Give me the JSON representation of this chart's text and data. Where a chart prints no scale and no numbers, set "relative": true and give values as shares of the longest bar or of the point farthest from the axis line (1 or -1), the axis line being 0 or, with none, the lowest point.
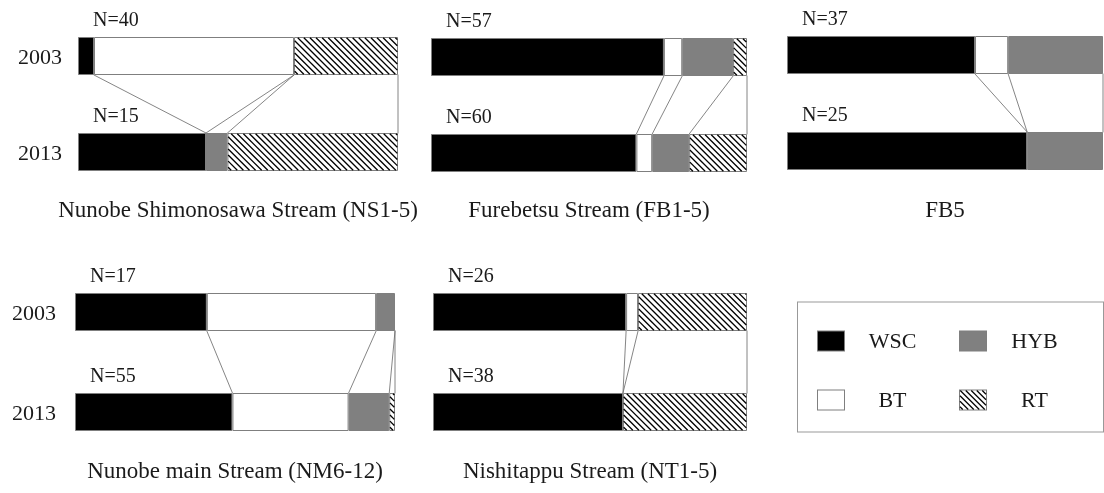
{
  "chart_data": [
    {
      "type": "bar",
      "orientation": "horizontal",
      "stacked": true,
      "relative": true,
      "title": "Nunobe Shimonosawa Stream (NS1-5)",
      "categories": [
        "2003",
        "2013"
      ],
      "series": [
        {
          "color": "#000000",
          "values": [
            0.05,
            0.4
          ]
        },
        {
          "color": "#ffffff",
          "values": [
            0.625,
            null
          ]
        },
        {
          "color": "#808080",
          "values": [
            null,
            0.067
          ]
        },
        {
          "color": "#ffffff",
          "values": [
            0.325,
            0.533
          ]
        }
      ],
      "annotations": [
        "N=40",
        "N=15"
      ]
    },
    {
      "type": "bar",
      "orientation": "horizontal",
      "stacked": true,
      "relative": true,
      "title": "Furebetsu Stream (FB1-5)",
      "categories": [
        "2003",
        "2013"
      ],
      "tick_labels": false,
      "series": [
        {
          "color": "#000000",
          "values": [
            0.737,
            0.65
          ]
        },
        {
          "color": "#ffffff",
          "values": [
            0.058,
            0.05
          ]
        },
        {
          "color": "#808080",
          "values": [
            0.161,
            0.117
          ]
        },
        {
          "color": "#ffffff",
          "values": [
            0.044,
            0.183
          ]
        }
      ],
      "annotations": [
        "N=57",
        "N=60"
      ]
    },
    {
      "type": "bar",
      "orientation": "horizontal",
      "stacked": true,
      "relative": true,
      "title": "FB5",
      "categories": [
        "2003",
        "2013"
      ],
      "tick_labels": false,
      "series": [
        {
          "color": "#000000",
          "values": [
            0.595,
            0.76
          ]
        },
        {
          "color": "#ffffff",
          "values": [
            0.105,
            null
          ]
        },
        {
          "color": "#808080",
          "values": [
            0.3,
            0.24
          ]
        }
      ],
      "annotations": [
        "N=37",
        "N=25"
      ]
    },
    {
      "type": "bar",
      "orientation": "horizontal",
      "stacked": true,
      "relative": true,
      "title": "Nunobe main Stream (NM6-12)",
      "categories": [
        "2003",
        "2013"
      ],
      "series": [
        {
          "color": "#000000",
          "values": [
            0.412,
            0.492
          ]
        },
        {
          "color": "#ffffff",
          "values": [
            0.529,
            0.363
          ]
        },
        {
          "color": "#808080",
          "values": [
            0.059,
            0.127
          ]
        },
        {
          "color": "#ffffff",
          "values": [
            null,
            0.018
          ]
        }
      ],
      "annotations": [
        "N=17",
        "N=55"
      ]
    },
    {
      "type": "bar",
      "orientation": "horizontal",
      "stacked": true,
      "relative": true,
      "title": "Nishitappu Stream (NT1-5)",
      "categories": [
        "2003",
        "2013"
      ],
      "tick_labels": false,
      "legend": "right",
      "series": [
        {
          "name": "WSC",
          "color": "#000000",
          "values": [
            0.615,
            0.605
          ]
        },
        {
          "name": "BT",
          "color": "#ffffff",
          "values": [
            0.038,
            null
          ]
        },
        {
          "name": "HYB",
          "color": "#808080",
          "values": [
            null,
            null
          ]
        },
        {
          "name": "RT",
          "color": "#ffffff",
          "values": [
            0.347,
            0.395
          ]
        }
      ],
      "annotations": [
        "N=26",
        "N=38"
      ]
    }
  ]
}
